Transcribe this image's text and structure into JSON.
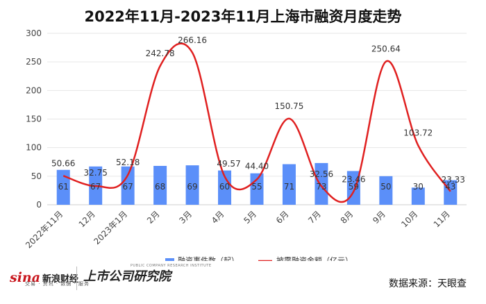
{
  "chart_data": {
    "type": "bar+line",
    "title": "2022年11月-2023年11月上海市融资月度走势",
    "categories": [
      "2022年11月",
      "12月",
      "2023年1月",
      "2月",
      "3月",
      "4月",
      "5月",
      "6月",
      "7月",
      "8月",
      "9月",
      "10月",
      "11月"
    ],
    "series": [
      {
        "name": "融资事件数（起）",
        "type": "bar",
        "color": "#5b8ff9",
        "values": [
          61,
          67,
          67,
          68,
          69,
          60,
          55,
          71,
          73,
          59,
          50,
          30,
          43
        ]
      },
      {
        "name": "披露融资金额（亿元）",
        "type": "line",
        "color": "#e02020",
        "values": [
          50.66,
          32.75,
          52.18,
          242.78,
          266.16,
          49.57,
          44.4,
          150.75,
          32.56,
          23.46,
          250.64,
          103.72,
          23.33
        ],
        "labels": [
          "50.66",
          "32.75",
          "52.18",
          "242.78",
          "266.16",
          "49.57",
          "44.40",
          "150.75",
          "32.56",
          "23.46",
          "250.64",
          "103.72",
          "23.33"
        ]
      }
    ],
    "ylim": [
      0,
      300
    ],
    "yticks": [
      0,
      50,
      100,
      150,
      200,
      250,
      300
    ],
    "grid": true,
    "legend_position": "bottom"
  },
  "footer": {
    "brand_logo": "sina",
    "brand_name": "新浪财经",
    "brand_tags": "交易 · 资讯 · 数据 · 服务",
    "institute_name": "上市公司研究院",
    "institute_sub": "PUBLIC COMPANY RESEARCH INSTITUTE",
    "source": "数据来源：天眼查"
  },
  "colors": {
    "bar": "#5b8ff9",
    "line": "#e02020",
    "grid": "#e6e6e6"
  }
}
